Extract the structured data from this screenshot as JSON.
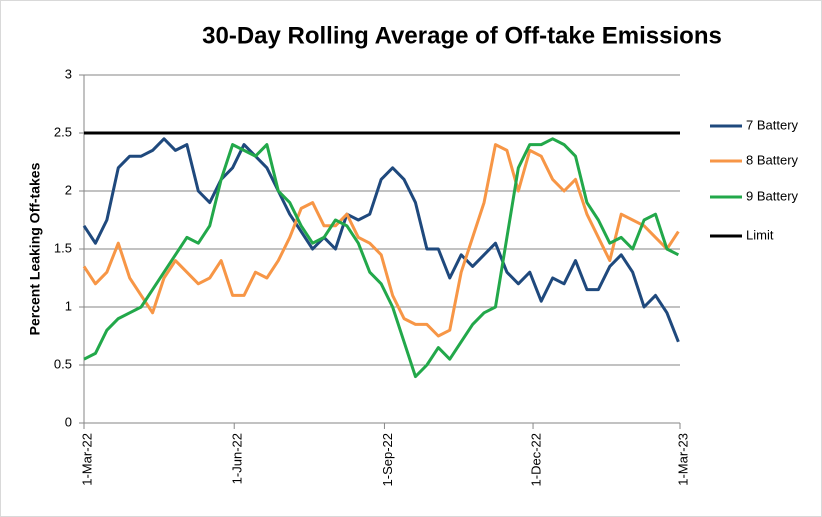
{
  "chart_data": {
    "type": "line",
    "title": "30-Day Rolling Average of Off-take Emissions",
    "y_label": "Percent Leaking Off-takes",
    "x": [
      "2022-03-01",
      "2022-03-08",
      "2022-03-15",
      "2022-03-22",
      "2022-03-29",
      "2022-04-05",
      "2022-04-12",
      "2022-04-19",
      "2022-04-26",
      "2022-05-03",
      "2022-05-10",
      "2022-05-17",
      "2022-05-24",
      "2022-05-31",
      "2022-06-07",
      "2022-06-14",
      "2022-06-21",
      "2022-06-28",
      "2022-07-05",
      "2022-07-12",
      "2022-07-19",
      "2022-07-26",
      "2022-08-02",
      "2022-08-09",
      "2022-08-16",
      "2022-08-23",
      "2022-08-30",
      "2022-09-06",
      "2022-09-13",
      "2022-09-20",
      "2022-09-27",
      "2022-10-04",
      "2022-10-11",
      "2022-10-18",
      "2022-10-25",
      "2022-11-01",
      "2022-11-08",
      "2022-11-15",
      "2022-11-22",
      "2022-11-29",
      "2022-12-06",
      "2022-12-13",
      "2022-12-20",
      "2022-12-27",
      "2023-01-03",
      "2023-01-10",
      "2023-01-17",
      "2023-01-24",
      "2023-01-31",
      "2023-02-07",
      "2023-02-14",
      "2023-02-21",
      "2023-02-28"
    ],
    "series": [
      {
        "name": "7 Battery",
        "color": "#1f497d",
        "values": [
          1.7,
          1.55,
          1.75,
          2.2,
          2.3,
          2.3,
          2.35,
          2.45,
          2.35,
          2.4,
          2.0,
          1.9,
          2.1,
          2.2,
          2.4,
          2.3,
          2.2,
          2.0,
          1.8,
          1.65,
          1.5,
          1.6,
          1.5,
          1.8,
          1.75,
          1.8,
          2.1,
          2.2,
          2.1,
          1.9,
          1.5,
          1.5,
          1.25,
          1.45,
          1.35,
          1.45,
          1.55,
          1.3,
          1.2,
          1.3,
          1.05,
          1.25,
          1.2,
          1.4,
          1.15,
          1.15,
          1.35,
          1.45,
          1.3,
          1.0,
          1.1,
          0.95,
          0.7
        ]
      },
      {
        "name": "8 Battery",
        "color": "#f79646",
        "values": [
          1.35,
          1.2,
          1.3,
          1.55,
          1.25,
          1.1,
          0.95,
          1.25,
          1.4,
          1.3,
          1.2,
          1.25,
          1.4,
          1.1,
          1.1,
          1.3,
          1.25,
          1.4,
          1.6,
          1.85,
          1.9,
          1.7,
          1.7,
          1.8,
          1.6,
          1.55,
          1.45,
          1.1,
          0.9,
          0.85,
          0.85,
          0.75,
          0.8,
          1.3,
          1.6,
          1.9,
          2.4,
          2.35,
          2.0,
          2.35,
          2.3,
          2.1,
          2.0,
          2.1,
          1.8,
          1.6,
          1.4,
          1.8,
          1.75,
          1.7,
          1.6,
          1.5,
          1.65
        ]
      },
      {
        "name": "9 Battery",
        "color": "#22a84a",
        "values": [
          0.55,
          0.6,
          0.8,
          0.9,
          0.95,
          1.0,
          1.15,
          1.3,
          1.45,
          1.6,
          1.55,
          1.7,
          2.1,
          2.4,
          2.35,
          2.3,
          2.4,
          2.0,
          1.9,
          1.7,
          1.55,
          1.6,
          1.75,
          1.7,
          1.55,
          1.3,
          1.2,
          1.0,
          0.7,
          0.4,
          0.5,
          0.65,
          0.55,
          0.7,
          0.85,
          0.95,
          1.0,
          1.6,
          2.2,
          2.4,
          2.4,
          2.45,
          2.4,
          2.3,
          1.9,
          1.75,
          1.55,
          1.6,
          1.5,
          1.75,
          1.8,
          1.5,
          1.45
        ]
      }
    ],
    "reference_line": {
      "name": "Limit",
      "value": 2.5,
      "color": "#000000"
    },
    "xlim": [
      "2022-03-01",
      "2023-03-01"
    ],
    "xticks": [
      {
        "value": "2022-03-01",
        "label": "1-Mar-22"
      },
      {
        "value": "2022-06-01",
        "label": "1-Jun-22"
      },
      {
        "value": "2022-09-01",
        "label": "1-Sep-22"
      },
      {
        "value": "2022-12-01",
        "label": "1-Dec-22"
      },
      {
        "value": "2023-03-01",
        "label": "1-Mar-23"
      }
    ],
    "ylim": [
      0,
      3
    ],
    "yticks": [
      0,
      0.5,
      1,
      1.5,
      2,
      2.5,
      3
    ],
    "grid": true,
    "legend": "right"
  }
}
